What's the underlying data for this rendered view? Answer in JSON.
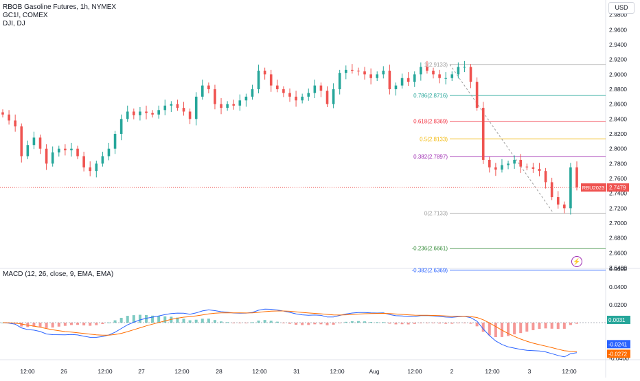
{
  "header": {
    "symbol_line": "RBOB Gasoline Futures, 1h, NYMEX",
    "compare_1": "GC1!, COMEX",
    "compare_2": "DJI, DJ",
    "currency": "USD"
  },
  "colors": {
    "up": "#26a69a",
    "down": "#ef5350",
    "macd_line": "#2962ff",
    "signal_line": "#ff6d00",
    "last_price": "#ef5350"
  },
  "icons": {
    "alert": "lightning-icon"
  },
  "chart_data": [
    {
      "type": "candlestick",
      "title": "RBOB Gasoline Futures, 1h, NYMEX",
      "ylim": [
        2.64,
        3.0
      ],
      "y_ticks": [
        "2.9800",
        "2.9600",
        "2.9400",
        "2.9200",
        "2.9000",
        "2.8800",
        "2.8600",
        "2.8400",
        "2.8200",
        "2.8000",
        "2.7800",
        "2.7600",
        "2.7400",
        "2.7200",
        "2.7000",
        "2.6800",
        "2.6600",
        "2.6400"
      ],
      "x_ticks": [
        "12:00",
        "26",
        "12:00",
        "27",
        "12:00",
        "28",
        "12:00",
        "31",
        "12:00",
        "Aug",
        "12:00",
        "2",
        "12:00",
        "3",
        "12:00"
      ],
      "last_price": {
        "symbol": "RBU2023",
        "value": "2.7479"
      },
      "fib_levels": [
        {
          "label": "1(2.9133)",
          "price": 2.9133,
          "color": "#9e9e9e"
        },
        {
          "label": "0.786(2.8716)",
          "price": 2.8716,
          "color": "#26a69a"
        },
        {
          "label": "0.618(2.8369)",
          "price": 2.8369,
          "color": "#f23645"
        },
        {
          "label": "0.5(2.8133)",
          "price": 2.8133,
          "color": "#f2b705"
        },
        {
          "label": "0.382(2.7897)",
          "price": 2.7897,
          "color": "#9c27b0"
        },
        {
          "label": "0(2.7133)",
          "price": 2.7133,
          "color": "#9e9e9e"
        },
        {
          "label": "-0.236(2.6661)",
          "price": 2.6661,
          "color": "#388e3c"
        },
        {
          "label": "-0.382(2.6369)",
          "price": 2.6369,
          "color": "#2962ff"
        }
      ],
      "close_series": [
        2.846,
        2.838,
        2.83,
        2.79,
        2.805,
        2.815,
        2.8,
        2.78,
        2.795,
        2.8,
        2.798,
        2.8,
        2.79,
        2.775,
        2.77,
        2.78,
        2.79,
        2.8,
        2.82,
        2.84,
        2.85,
        2.845,
        2.85,
        2.848,
        2.846,
        2.852,
        2.858,
        2.86,
        2.855,
        2.85,
        2.84,
        2.87,
        2.885,
        2.88,
        2.86,
        2.855,
        2.86,
        2.858,
        2.865,
        2.87,
        2.88,
        2.905,
        2.9,
        2.885,
        2.88,
        2.875,
        2.87,
        2.865,
        2.87,
        2.875,
        2.885,
        2.878,
        2.86,
        2.88,
        2.902,
        2.906,
        2.905,
        2.904,
        2.9,
        2.895,
        2.9,
        2.905,
        2.88,
        2.885,
        2.895,
        2.89,
        2.9,
        2.91,
        2.905,
        2.9,
        2.895,
        2.895,
        2.9,
        2.91,
        2.91,
        2.89,
        2.855,
        2.785,
        2.775,
        2.772,
        2.778,
        2.78,
        2.785,
        2.776,
        2.775,
        2.773,
        2.77,
        2.755,
        2.735,
        2.725,
        2.72,
        2.775,
        2.748
      ]
    },
    {
      "type": "line",
      "title": "MACD (12, 26, close, 9, EMA, EMA)",
      "ylim": [
        -0.04,
        0.06
      ],
      "y_ticks": [
        "0.0600",
        "0.0400",
        "0.0200",
        "-0.0400"
      ],
      "series": [
        {
          "name": "MACD",
          "value_label": "-0.0241"
        },
        {
          "name": "Signal",
          "value_label": "-0.0272"
        },
        {
          "name": "Histogram",
          "value_label": "0.0031"
        }
      ]
    }
  ]
}
